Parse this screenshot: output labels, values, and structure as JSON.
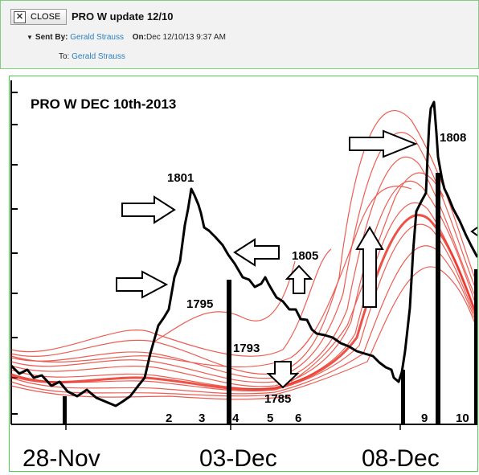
{
  "header": {
    "close_label": "CLOSE",
    "subject": "PRO W update 12/10",
    "sent_by_label": "Sent By:",
    "sender": "Gerald Strauss",
    "on_label": "On:",
    "date": "Dec 12/10/13 9:37 AM",
    "to_label": "To:",
    "recipient": "Gerald Strauss"
  },
  "chart_data": {
    "type": "line",
    "title": "PRO W DEC 10th-2013",
    "x_ticks": [
      "28-Nov",
      "03-Dec",
      "08-Dec"
    ],
    "price_labels": [
      "1801",
      "1795",
      "1805",
      "1793",
      "1785",
      "1808"
    ],
    "day_numbers": [
      "2",
      "3",
      "4",
      "5",
      "6",
      "9",
      "10"
    ],
    "colors": {
      "actual": "#000000",
      "forecast": "#e8271a"
    }
  }
}
